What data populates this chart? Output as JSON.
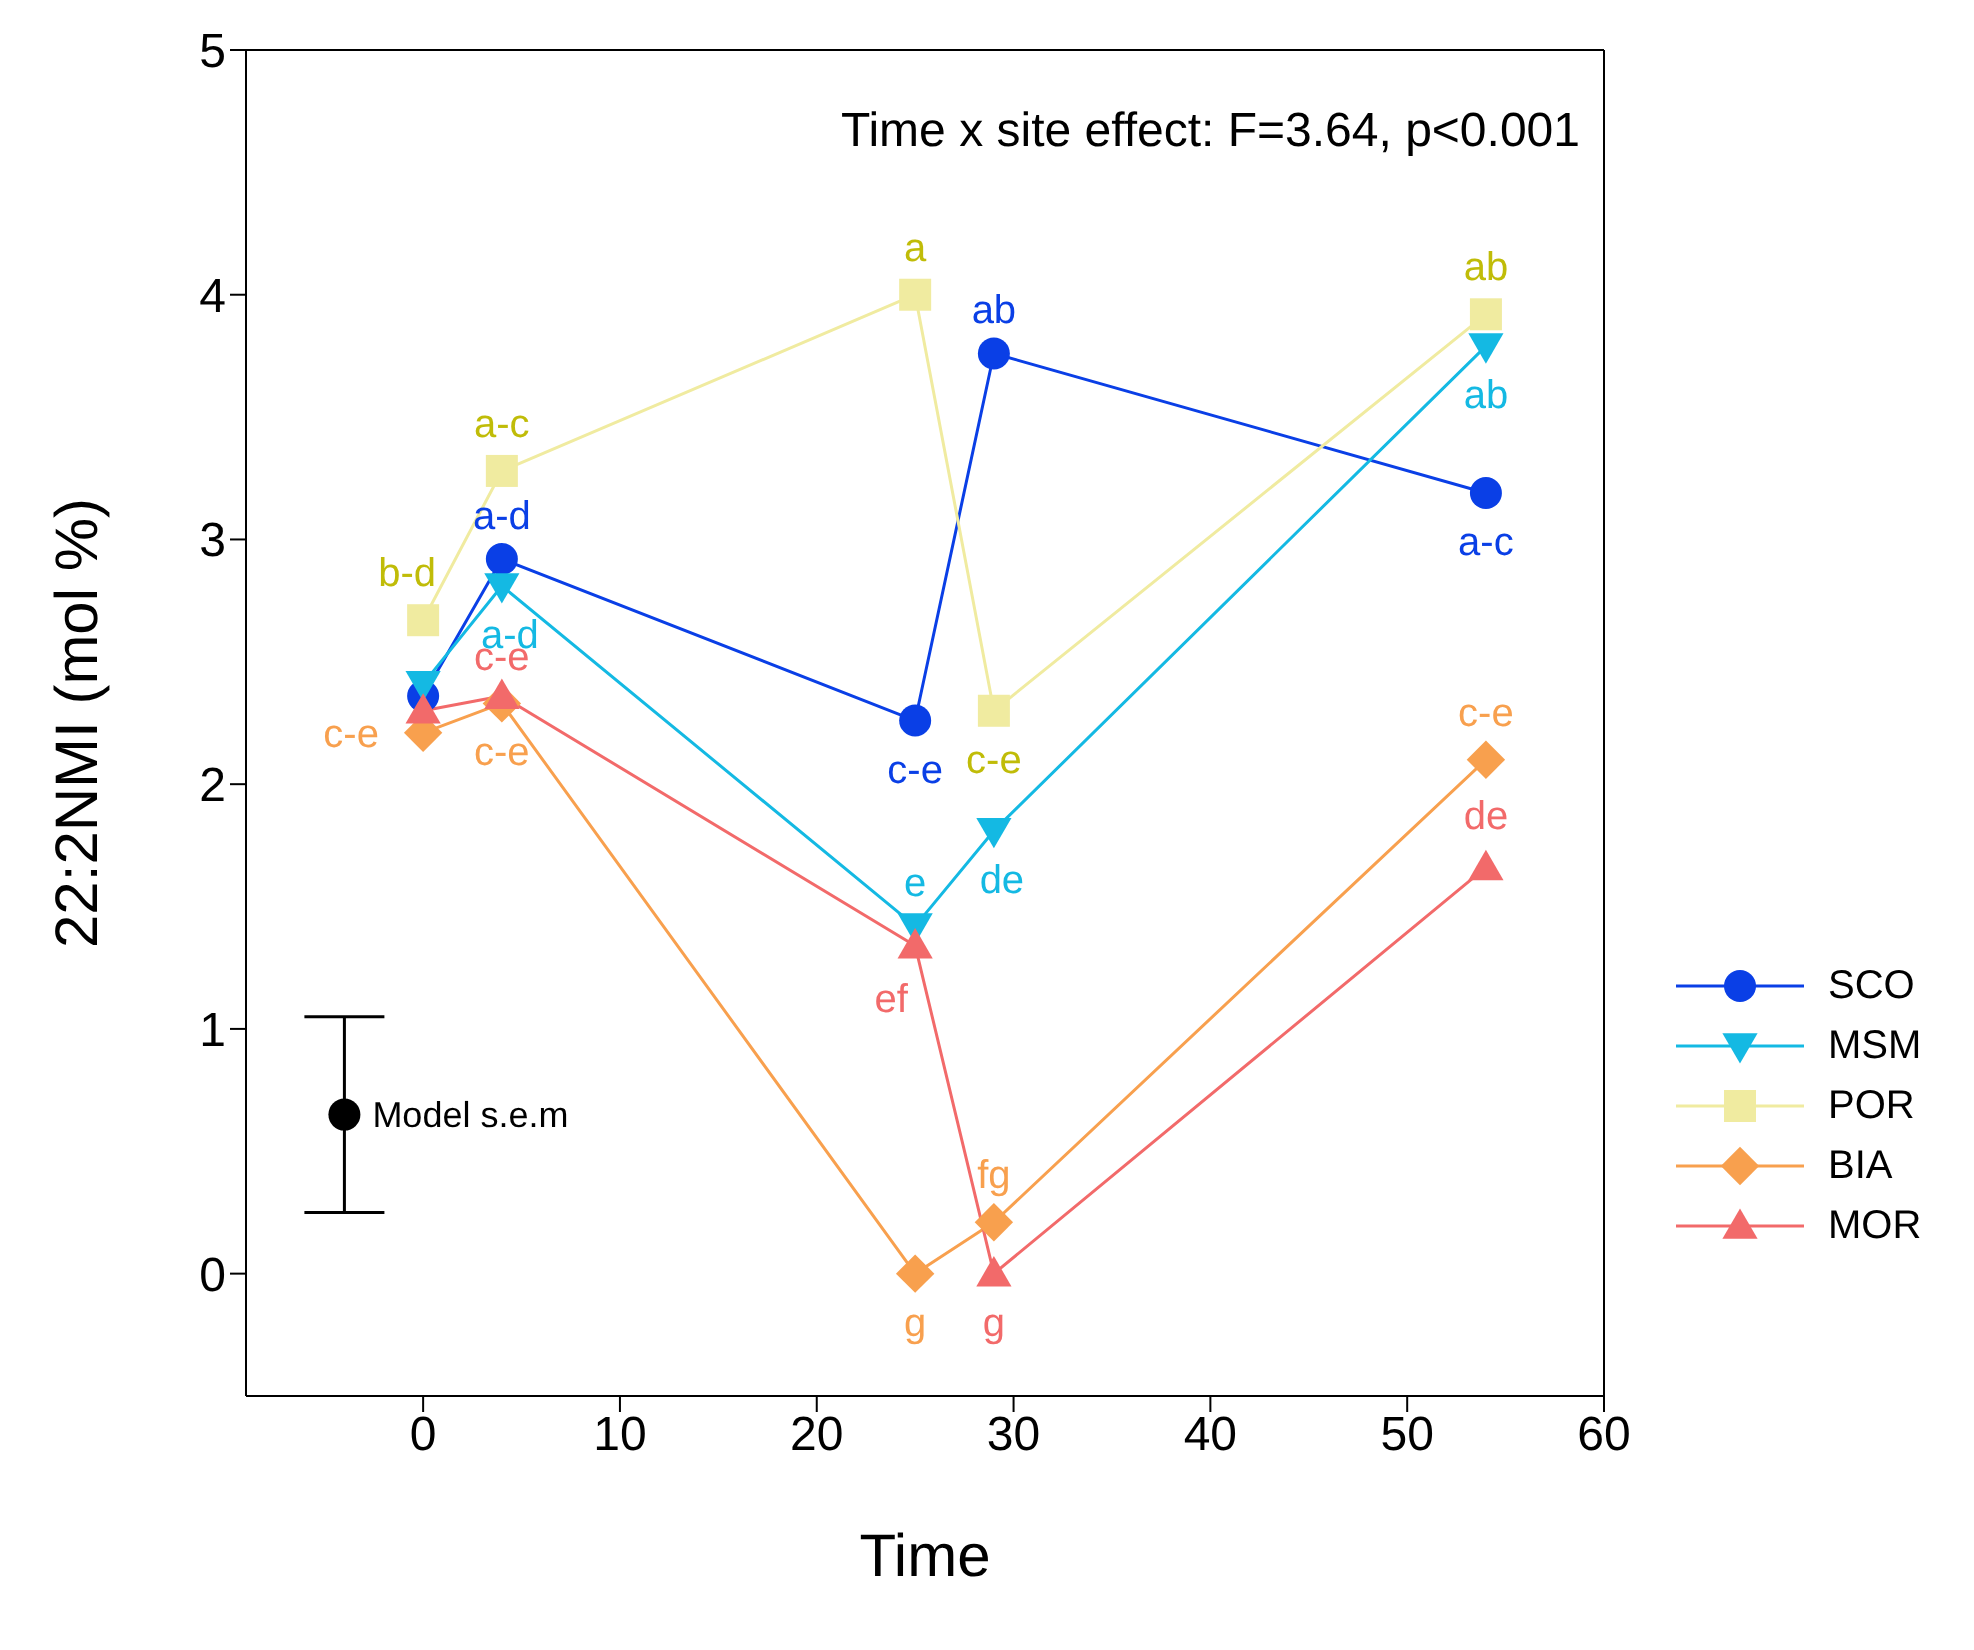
{
  "chart_data": {
    "type": "line",
    "xlabel": "Time",
    "ylabel": "22:2NMI (mol %)",
    "annotations": [
      "Time x site effect: F=3.64, p<0.001"
    ],
    "xlim": [
      -9,
      60
    ],
    "xticks": [
      0,
      10,
      20,
      30,
      40,
      50,
      60
    ],
    "ylim": [
      -0.5,
      5
    ],
    "yticks": [
      0,
      1,
      2,
      3,
      4,
      5
    ],
    "legend": "right",
    "series": [
      {
        "name": "SCO",
        "color": "#0a3fe6",
        "marker": "circle",
        "x": [
          0,
          4,
          25,
          29,
          54
        ],
        "values": [
          2.36,
          2.92,
          2.26,
          3.76,
          3.19
        ],
        "value_labels": [
          null,
          "a-d",
          "c-e",
          "ab",
          "a-c"
        ]
      },
      {
        "name": "MSM",
        "color": "#14b9e3",
        "marker": "triangle-down",
        "x": [
          0,
          4,
          25,
          29,
          54
        ],
        "values": [
          2.41,
          2.81,
          1.42,
          1.81,
          3.79
        ],
        "value_labels": [
          null,
          "a-d",
          "e",
          "de",
          "ab"
        ]
      },
      {
        "name": "POR",
        "color": "#f0eba0",
        "marker": "square",
        "x": [
          0,
          4,
          25,
          29,
          54
        ],
        "values": [
          2.67,
          3.28,
          4.0,
          2.3,
          3.92
        ],
        "value_labels": [
          "b-d",
          "a-c",
          "a",
          "c-e",
          "ab"
        ]
      },
      {
        "name": "BIA",
        "color": "#f8a04e",
        "marker": "diamond",
        "x": [
          0,
          4,
          25,
          29,
          54
        ],
        "values": [
          2.21,
          2.33,
          0,
          0.21,
          2.1
        ],
        "value_labels": [
          "c-e",
          "c-e",
          "g",
          "fg",
          "c-e"
        ]
      },
      {
        "name": "MOR",
        "color": "#f26a6a",
        "marker": "triangle",
        "x": [
          0,
          4,
          25,
          29,
          54
        ],
        "values": [
          2.3,
          2.36,
          1.34,
          0,
          1.66
        ],
        "value_labels": [
          null,
          "c-e",
          "ef",
          "g",
          "de"
        ]
      },
      {
        "name": "Model s.e.m",
        "type": "scatter",
        "color": "#000000",
        "marker": "circle",
        "x": [
          -4
        ],
        "values": [
          0.65
        ],
        "errors": [
          0.4
        ]
      }
    ]
  }
}
